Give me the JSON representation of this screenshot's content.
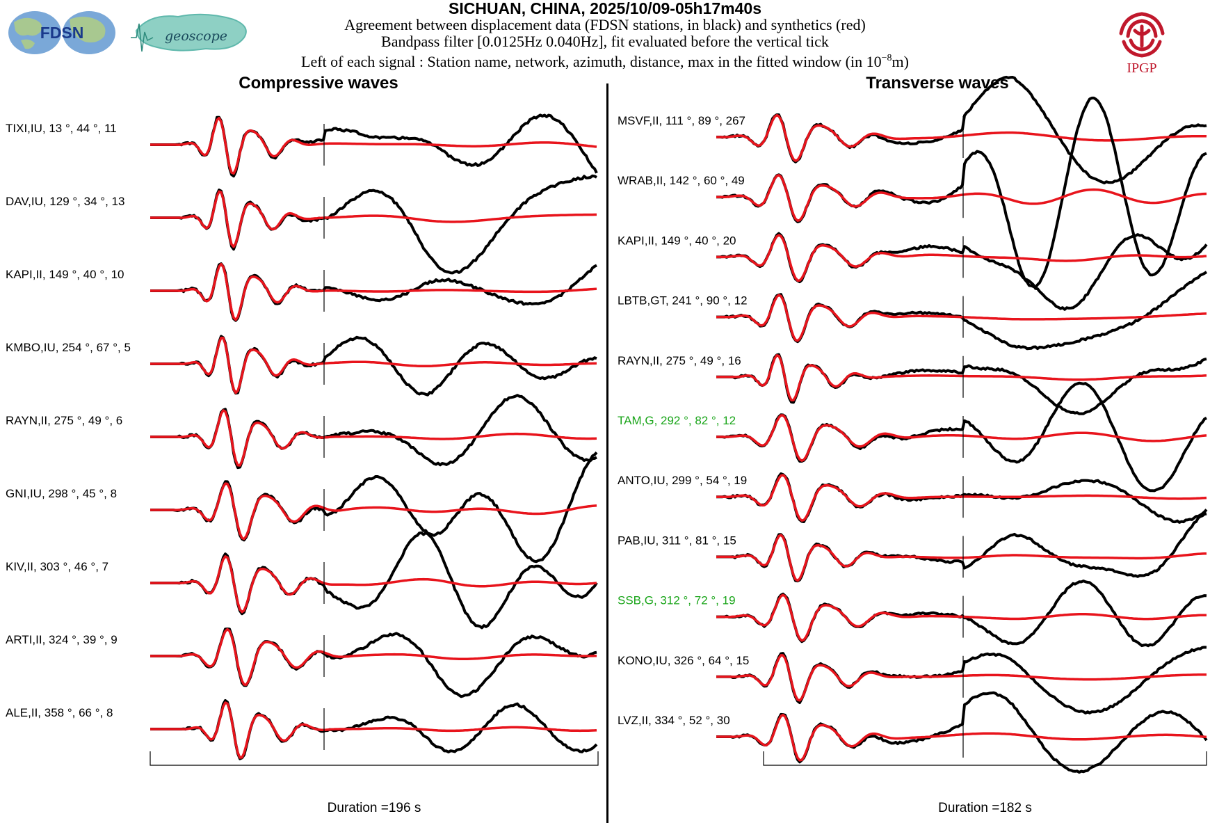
{
  "header": {
    "title": "SICHUAN, CHINA, 2025/10/09-05h17m40s",
    "line1": "Agreement between displacement data (FDSN stations, in black) and synthetics (red)",
    "line2": "Bandpass filter [0.0125Hz 0.040Hz], fit evaluated before the vertical tick",
    "line3_main": "Left of each signal : Station name, network, azimuth, distance, max in the fitted window (in 10",
    "line3_exp": "−8",
    "line3_end": "m)"
  },
  "logos": {
    "fdsn": "FDSN",
    "geoscope": "geoscope",
    "ipgp": "IPGP"
  },
  "colors": {
    "data": "#000000",
    "synthetic": "#e8141c",
    "highlight_label": "#1aa51a",
    "ipgp_red": "#c0182c",
    "fdsn_blue": "#1a3a8c",
    "geoscope_teal": "#5fb8ac"
  },
  "chart_data": [
    {
      "type": "line",
      "title": "Compressive waves",
      "duration_label": "Duration =196 s",
      "series_legend": [
        "data (black)",
        "synthetics (red)"
      ],
      "traces": [
        {
          "label": "TIXI,IU, 13  °, 44  °, 11",
          "station": "TIXI",
          "network": "IU",
          "azimuth": 13,
          "distance": 44,
          "max": 11,
          "highlight": false
        },
        {
          "label": "DAV,IU, 129  °, 34  °, 13",
          "station": "DAV",
          "network": "IU",
          "azimuth": 129,
          "distance": 34,
          "max": 13,
          "highlight": false
        },
        {
          "label": "KAPI,II, 149  °, 40  °, 10",
          "station": "KAPI",
          "network": "II",
          "azimuth": 149,
          "distance": 40,
          "max": 10,
          "highlight": false
        },
        {
          "label": "KMBO,IU, 254  °, 67  °, 5",
          "station": "KMBO",
          "network": "IU",
          "azimuth": 254,
          "distance": 67,
          "max": 5,
          "highlight": false
        },
        {
          "label": "RAYN,II, 275  °, 49  °, 6",
          "station": "RAYN",
          "network": "II",
          "azimuth": 275,
          "distance": 49,
          "max": 6,
          "highlight": false
        },
        {
          "label": "GNI,IU, 298  °, 45  °, 8",
          "station": "GNI",
          "network": "IU",
          "azimuth": 298,
          "distance": 45,
          "max": 8,
          "highlight": false
        },
        {
          "label": "KIV,II, 303  °, 46  °, 7",
          "station": "KIV",
          "network": "II",
          "azimuth": 303,
          "distance": 46,
          "max": 7,
          "highlight": false
        },
        {
          "label": "ARTI,II, 324  °, 39  °, 9",
          "station": "ARTI",
          "network": "II",
          "azimuth": 324,
          "distance": 39,
          "max": 9,
          "highlight": false
        },
        {
          "label": "ALE,II, 358  °, 66  °, 8",
          "station": "ALE",
          "network": "II",
          "azimuth": 358,
          "distance": 66,
          "max": 8,
          "highlight": false
        }
      ]
    },
    {
      "type": "line",
      "title": "Transverse waves",
      "duration_label": "Duration =182 s",
      "series_legend": [
        "data (black)",
        "synthetics (red)"
      ],
      "traces": [
        {
          "label": "MSVF,II, 111  °, 89  °, 267",
          "station": "MSVF",
          "network": "II",
          "azimuth": 111,
          "distance": 89,
          "max": 267,
          "highlight": false
        },
        {
          "label": "WRAB,II, 142  °, 60  °, 49",
          "station": "WRAB",
          "network": "II",
          "azimuth": 142,
          "distance": 60,
          "max": 49,
          "highlight": false
        },
        {
          "label": "KAPI,II, 149  °, 40  °, 20",
          "station": "KAPI",
          "network": "II",
          "azimuth": 149,
          "distance": 40,
          "max": 20,
          "highlight": false
        },
        {
          "label": "LBTB,GT, 241  °, 90  °, 12",
          "station": "LBTB",
          "network": "GT",
          "azimuth": 241,
          "distance": 90,
          "max": 12,
          "highlight": false
        },
        {
          "label": "RAYN,II, 275  °, 49  °, 16",
          "station": "RAYN",
          "network": "II",
          "azimuth": 275,
          "distance": 49,
          "max": 16,
          "highlight": false
        },
        {
          "label": "TAM,G, 292  °, 82  °, 12",
          "station": "TAM",
          "network": "G",
          "azimuth": 292,
          "distance": 82,
          "max": 12,
          "highlight": true
        },
        {
          "label": "ANTO,IU, 299  °, 54  °, 19",
          "station": "ANTO",
          "network": "IU",
          "azimuth": 299,
          "distance": 54,
          "max": 19,
          "highlight": false
        },
        {
          "label": "PAB,IU, 311  °, 81  °, 15",
          "station": "PAB",
          "network": "IU",
          "azimuth": 311,
          "distance": 81,
          "max": 15,
          "highlight": false
        },
        {
          "label": "SSB,G, 312  °, 72  °, 19",
          "station": "SSB",
          "network": "G",
          "azimuth": 312,
          "distance": 72,
          "max": 19,
          "highlight": true
        },
        {
          "label": "KONO,IU, 326  °, 64  °, 15",
          "station": "KONO",
          "network": "IU",
          "azimuth": 326,
          "distance": 64,
          "max": 15,
          "highlight": false
        },
        {
          "label": "LVZ,II, 334  °, 52  °, 30",
          "station": "LVZ",
          "network": "II",
          "azimuth": 334,
          "distance": 52,
          "max": 30,
          "highlight": false
        }
      ]
    }
  ]
}
